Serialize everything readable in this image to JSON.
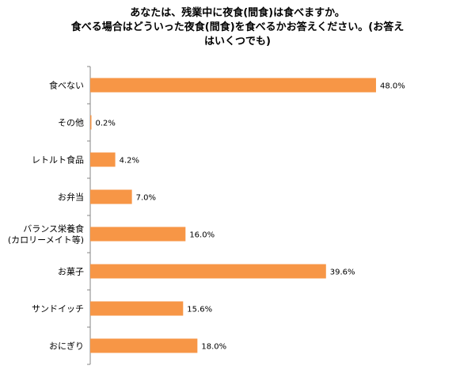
{
  "chart_data": {
    "type": "bar",
    "orientation": "horizontal",
    "title_lines": [
      "あなたは、残業中に夜食(間食)は食べますか。",
      "食べる場合はどういった夜食(間食)を食べるかお答えください。(お答え",
      "はいくつでも)"
    ],
    "categories": [
      [
        "食べない"
      ],
      [
        "その他"
      ],
      [
        "レトルト食品"
      ],
      [
        "お弁当"
      ],
      [
        "バランス栄養食",
        "(カロリーメイト等)"
      ],
      [
        "お菓子"
      ],
      [
        "サンドイッチ"
      ],
      [
        "おにぎり"
      ]
    ],
    "values": [
      48.0,
      0.2,
      4.2,
      7.0,
      16.0,
      39.6,
      15.6,
      18.0
    ],
    "value_labels": [
      "48.0%",
      "0.2%",
      "4.2%",
      "7.0%",
      "16.0%",
      "39.6%",
      "15.6%",
      "18.0%"
    ],
    "xlim": [
      0,
      50
    ],
    "bar_color": "#f79646",
    "axis_color": "#868686",
    "grid": false,
    "legend": "none"
  }
}
